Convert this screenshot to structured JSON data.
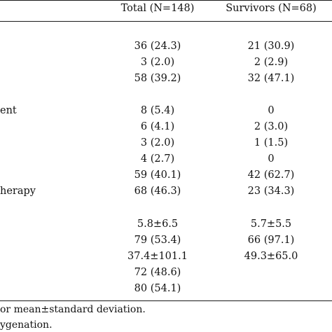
{
  "table": {
    "columns": [
      "Total (N=148)",
      "Survivors (N=68)"
    ],
    "rows": [
      {
        "label": "",
        "total": "36 (24.3)",
        "survivors": "21 (30.9)"
      },
      {
        "label": "",
        "total": "3 (2.0)",
        "survivors": "2 (2.9)"
      },
      {
        "label": "",
        "total": "58 (39.2)",
        "survivors": "32 (47.1)"
      },
      {
        "label": "ent",
        "total": "8 (5.4)",
        "survivors": "0"
      },
      {
        "label": "",
        "total": "6 (4.1)",
        "survivors": "2 (3.0)"
      },
      {
        "label": "",
        "total": "3 (2.0)",
        "survivors": "1 (1.5)"
      },
      {
        "label": "",
        "total": "4 (2.7)",
        "survivors": "0"
      },
      {
        "label": "",
        "total": "59 (40.1)",
        "survivors": "42 (62.7)"
      },
      {
        "label": "herapy",
        "total": "68 (46.3)",
        "survivors": "23 (34.3)"
      },
      {
        "label": "",
        "total": "5.8±6.5",
        "survivors": "5.7±5.5"
      },
      {
        "label": "",
        "total": "79 (53.4)",
        "survivors": "66 (97.1)"
      },
      {
        "label": "",
        "total": "37.4±101.1",
        "survivors": "49.3±65.0"
      },
      {
        "label": "",
        "total": "72 (48.6)",
        "survivors": ""
      },
      {
        "label": "",
        "total": "80 (54.1)",
        "survivors": ""
      }
    ]
  },
  "footnotes": [
    "or mean±standard deviation.",
    "ygenation."
  ]
}
